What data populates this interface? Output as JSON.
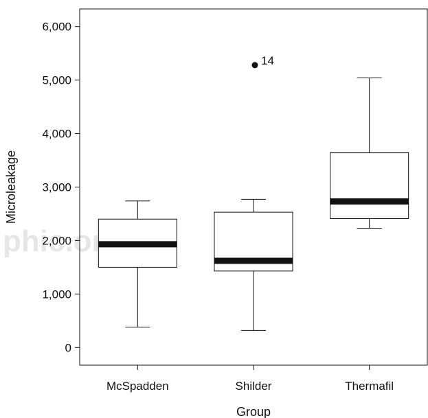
{
  "watermark": "phic.or  x",
  "chart_data": {
    "type": "boxplot",
    "xlabel": "Group",
    "ylabel": "Microleakage",
    "ylim": [
      -330,
      6330
    ],
    "y_ticks": [
      0,
      1000,
      2000,
      3000,
      4000,
      5000,
      6000
    ],
    "y_tick_labels": [
      "0",
      "1,000",
      "2,000",
      "3,000",
      "4,000",
      "5,000",
      "6,000"
    ],
    "categories": [
      "McSpadden",
      "Shilder",
      "Thermafil"
    ],
    "boxes": [
      {
        "group": "McSpadden",
        "whisker_low": 380,
        "q1": 1500,
        "median": 1930,
        "q3": 2400,
        "whisker_high": 2740
      },
      {
        "group": "Shilder",
        "whisker_low": 320,
        "q1": 1430,
        "median": 1620,
        "q3": 2530,
        "whisker_high": 2770
      },
      {
        "group": "Thermafil",
        "whisker_low": 2230,
        "q1": 2410,
        "median": 2730,
        "q3": 3640,
        "whisker_high": 5040
      }
    ],
    "outliers": [
      {
        "group": "Shilder",
        "value": 5280,
        "label": "14"
      }
    ],
    "grid": false,
    "legend": "none"
  }
}
